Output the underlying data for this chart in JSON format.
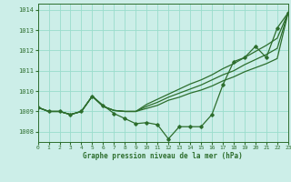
{
  "title": "Graphe pression niveau de la mer (hPa)",
  "background_color": "#cceee8",
  "grid_color": "#99ddcc",
  "line_color": "#2d6e2d",
  "xlim": [
    0,
    23
  ],
  "ylim": [
    1007.5,
    1014.3
  ],
  "yticks": [
    1008,
    1009,
    1010,
    1011,
    1012,
    1013,
    1014
  ],
  "xticks": [
    0,
    1,
    2,
    3,
    4,
    5,
    6,
    7,
    8,
    9,
    10,
    11,
    12,
    13,
    14,
    15,
    16,
    17,
    18,
    19,
    20,
    21,
    22,
    23
  ],
  "series": {
    "line_main": [
      1009.2,
      1009.0,
      1009.0,
      1008.85,
      1009.0,
      1009.75,
      1009.3,
      1008.9,
      1008.65,
      1008.4,
      1008.45,
      1008.35,
      1007.65,
      1008.25,
      1008.25,
      1008.25,
      1008.85,
      1010.3,
      1011.45,
      1011.65,
      1012.2,
      1011.65,
      1013.1,
      1013.85
    ],
    "line_a": [
      1009.2,
      1009.0,
      1009.0,
      1008.85,
      1009.0,
      1009.75,
      1009.25,
      1009.05,
      1009.0,
      1009.0,
      1009.15,
      1009.3,
      1009.55,
      1009.7,
      1009.9,
      1010.05,
      1010.25,
      1010.5,
      1010.7,
      1010.95,
      1011.15,
      1011.35,
      1011.6,
      1013.85
    ],
    "line_b": [
      1009.2,
      1009.0,
      1009.0,
      1008.85,
      1009.0,
      1009.75,
      1009.25,
      1009.05,
      1009.0,
      1009.0,
      1009.25,
      1009.45,
      1009.7,
      1009.9,
      1010.1,
      1010.3,
      1010.55,
      1010.8,
      1011.0,
      1011.3,
      1011.55,
      1011.8,
      1012.1,
      1013.85
    ],
    "line_c": [
      1009.2,
      1009.0,
      1009.0,
      1008.85,
      1009.0,
      1009.75,
      1009.25,
      1009.05,
      1009.0,
      1009.0,
      1009.35,
      1009.6,
      1009.85,
      1010.1,
      1010.35,
      1010.55,
      1010.8,
      1011.1,
      1011.35,
      1011.65,
      1011.95,
      1012.25,
      1012.6,
      1013.85
    ]
  }
}
